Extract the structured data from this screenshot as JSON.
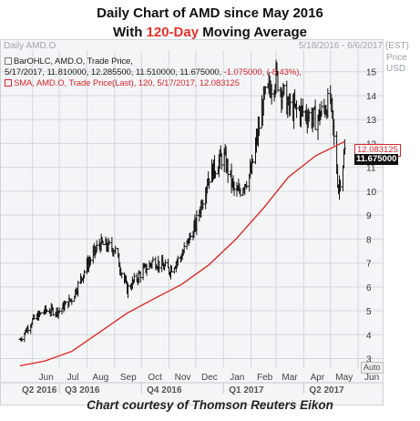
{
  "title": "Daily Chart of AMD since May 2016",
  "subtitle_prefix": "With ",
  "subtitle_highlight": "120-Day",
  "subtitle_suffix": " Moving Average",
  "header_left": "Daily AMD.O",
  "header_right": "5/18/2016 - 6/6/2017 (EST)",
  "price_axis_label_1": "Price",
  "price_axis_label_2": "USD",
  "legend": {
    "ohlc_line": "BarOHLC, AMD.O, Trade Price,",
    "ohlc_values": "5/17/2017, 11.810000, 12.285500, 11.510000, 11.675000,",
    "ohlc_change": "-1.075000, (-8.43%),",
    "sma_line": "SMA, AMD.O, Trade Price(Last),  120,  5/17/2017,  12.083125"
  },
  "last_sma_tag": "12.083125",
  "last_price_tag": "11.675000",
  "auto_button": "Auto",
  "caption": "Chart courtesy of Thomson Reuters Eikon",
  "colors": {
    "price_bars": "#111111",
    "sma_line": "#e0201c",
    "grid": "#d4d7dc",
    "highlight": "#e8302a"
  },
  "chart_data": {
    "type": "line",
    "series": [
      {
        "name": "BarOHLC",
        "x": [
          "2016-05-18",
          "2016-06-01",
          "2016-06-15",
          "2016-07-01",
          "2016-07-15",
          "2016-08-01",
          "2016-08-15",
          "2016-09-01",
          "2016-09-15",
          "2016-10-01",
          "2016-10-15",
          "2016-11-01",
          "2016-11-15",
          "2016-12-01",
          "2016-12-15",
          "2017-01-01",
          "2017-01-15",
          "2017-02-01",
          "2017-02-15",
          "2017-03-01",
          "2017-03-15",
          "2017-04-01",
          "2017-04-15",
          "2017-05-01",
          "2017-05-10",
          "2017-05-17"
        ],
        "values": [
          3.8,
          4.6,
          5.0,
          5.0,
          5.5,
          6.9,
          7.8,
          7.6,
          5.9,
          6.6,
          7.1,
          6.7,
          7.3,
          8.6,
          10.6,
          11.5,
          9.8,
          10.8,
          13.8,
          14.8,
          13.5,
          13.3,
          13.0,
          13.8,
          10.1,
          11.675
        ]
      },
      {
        "name": "SMA 120",
        "x": [
          "2016-05-18",
          "2016-06-15",
          "2016-07-15",
          "2016-08-15",
          "2016-09-15",
          "2016-10-15",
          "2016-11-15",
          "2016-12-15",
          "2017-01-15",
          "2017-02-15",
          "2017-03-15",
          "2017-04-15",
          "2017-05-17"
        ],
        "values": [
          2.7,
          2.9,
          3.3,
          4.1,
          4.9,
          5.5,
          6.1,
          6.9,
          8.0,
          9.3,
          10.6,
          11.5,
          12.083125
        ]
      }
    ],
    "y_ticks": [
      3,
      4,
      5,
      6,
      7,
      8,
      9,
      10,
      11,
      12,
      13,
      14,
      15
    ],
    "ylim": [
      2.6,
      15.6
    ],
    "month_ticks": [
      "Jun",
      "Jul",
      "Aug",
      "Sep",
      "Oct",
      "Nov",
      "Dec",
      "Jan",
      "Feb",
      "Mar",
      "Apr",
      "May",
      "Jun"
    ],
    "quarter_ticks": [
      "Q2 2016",
      "Q3 2016",
      "Q4 2016",
      "Q1 2017",
      "Q2 2017"
    ],
    "grid": true
  }
}
